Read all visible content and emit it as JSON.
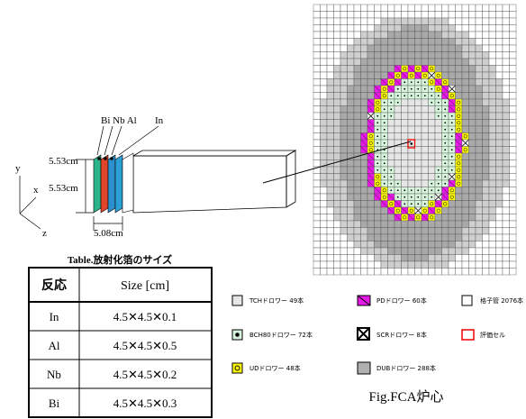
{
  "diagram": {
    "foil_labels": [
      "Bi Nb Al",
      "In"
    ],
    "axes": [
      "y",
      "x",
      "z"
    ],
    "dimensions": [
      "5.53cm",
      "5.53cm",
      "5.08cm"
    ]
  },
  "table": {
    "title": "Table.放射化箔のサイズ",
    "header": [
      "反応",
      "Size [cm]"
    ],
    "rows": [
      [
        "In",
        "4.5✕4.5✕0.1"
      ],
      [
        "Al",
        "4.5✕4.5✕0.5"
      ],
      [
        "Nb",
        "4.5✕4.5✕0.2"
      ],
      [
        "Bi",
        "4.5✕4.5✕0.3"
      ]
    ]
  },
  "legend": {
    "items": [
      "TCHドロワー  49本",
      "PDドロワー  60本",
      "格子管  2076本",
      "BCH80ドロワー  72本",
      "SCRドロワー  8本",
      "評価セル",
      "UDドロワー  48本",
      "DUBドロワー  288本"
    ]
  },
  "caption": "Fig.FCA炉心"
}
